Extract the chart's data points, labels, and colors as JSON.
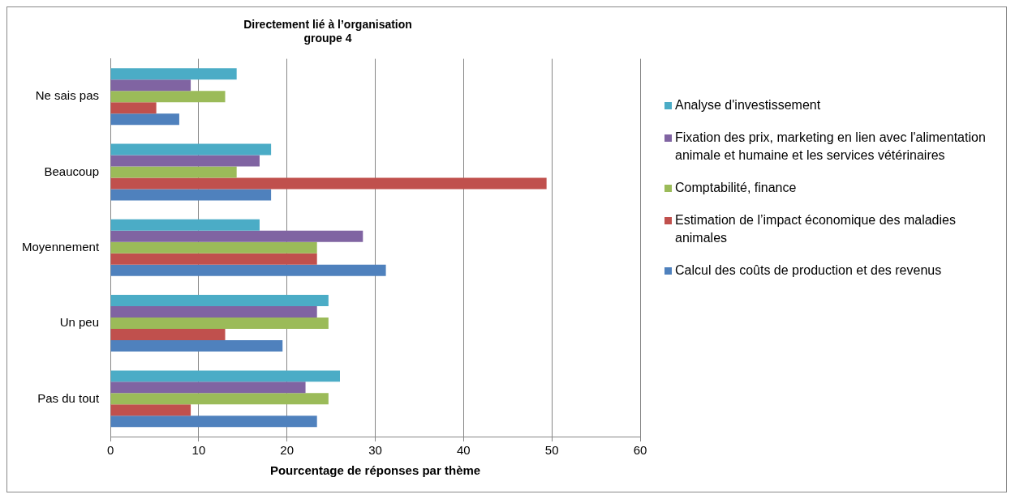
{
  "chart_data": {
    "type": "bar",
    "orientation": "horizontal",
    "title": "Directement lié à l’organisation\ngroupe 4",
    "xlabel": "Pourcentage de réponses par thème",
    "categories": [
      "Ne sais pas",
      "Beaucoup",
      "Moyennement",
      "Un peu",
      "Pas du tout"
    ],
    "series": [
      {
        "name": "Analyse d'investissement",
        "color": "#4bacc6",
        "values": [
          14.3,
          18.2,
          16.9,
          24.7,
          26.0
        ]
      },
      {
        "name": "Fixation des prix, marketing en lien avec l'alimentation animale et humaine et les services vétérinaires",
        "color": "#8064a2",
        "values": [
          9.1,
          16.9,
          28.6,
          23.4,
          22.1
        ]
      },
      {
        "name": "Comptabilité, finance",
        "color": "#9bbb59",
        "values": [
          13.0,
          14.3,
          23.4,
          24.7,
          24.7
        ]
      },
      {
        "name": "Estimation de l’impact économique des maladies animales",
        "color": "#c0504d",
        "values": [
          5.2,
          49.4,
          23.4,
          13.0,
          9.1
        ]
      },
      {
        "name": "Calcul des coûts de production et des revenus",
        "color": "#4f81bd",
        "values": [
          7.8,
          18.2,
          31.2,
          19.5,
          23.4
        ]
      }
    ],
    "xlim": [
      0,
      60
    ],
    "xticks": [
      0,
      10,
      20,
      30,
      40,
      50,
      60
    ],
    "grid": "x",
    "legend": "right"
  }
}
